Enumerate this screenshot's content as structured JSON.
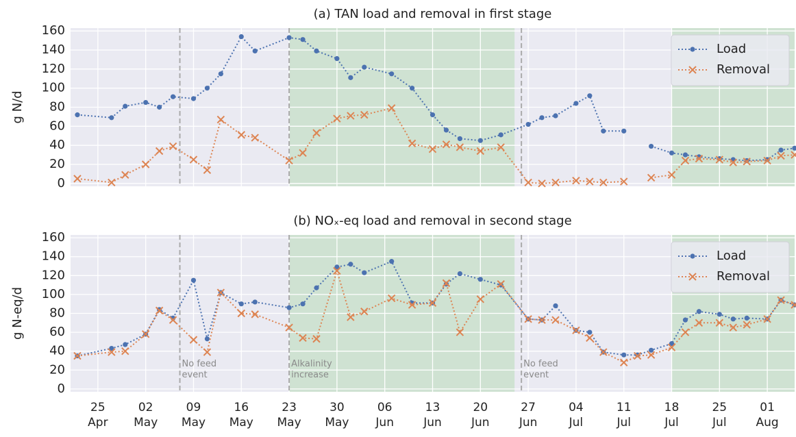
{
  "chart_data": [
    {
      "type": "line",
      "title": "(a) TAN load and removal in first stage",
      "y_label": "g N/d",
      "x": [
        "04-22",
        "04-27",
        "04-29",
        "05-02",
        "05-04",
        "05-06",
        "05-09",
        "05-11",
        "05-13",
        "05-16",
        "05-18",
        "05-23",
        "05-25",
        "05-27",
        "05-30",
        "06-01",
        "06-03",
        "06-07",
        "06-10",
        "06-13",
        "06-15",
        "06-17",
        "06-20",
        "06-23",
        "06-27",
        "06-29",
        "07-01",
        "07-04",
        "07-06",
        "07-08",
        "07-11",
        "07-13",
        "07-15",
        "07-18",
        "07-20",
        "07-22",
        "07-25",
        "07-27",
        "07-29",
        "08-01",
        "08-03",
        "08-05"
      ],
      "series": [
        {
          "name": "Load",
          "color": "#4c72b0",
          "marker": "o",
          "values": [
            72,
            69,
            81,
            85,
            80,
            91,
            89,
            100,
            115,
            154,
            139,
            153,
            151,
            139,
            131,
            111,
            122,
            115,
            100,
            72,
            56,
            47,
            45,
            51,
            62,
            69,
            71,
            84,
            92,
            55,
            55,
            null,
            39,
            32,
            30,
            28,
            26,
            25,
            24,
            25,
            35,
            37
          ]
        },
        {
          "name": "Removal",
          "color": "#dd8452",
          "marker": "x",
          "values": [
            5,
            1,
            9,
            20,
            34,
            39,
            25,
            14,
            67,
            51,
            48,
            24,
            32,
            53,
            68,
            71,
            72,
            79,
            42,
            36,
            41,
            38,
            34,
            38,
            1,
            0,
            1,
            3,
            2,
            1,
            2,
            null,
            6,
            9,
            24,
            26,
            25,
            22,
            23,
            24,
            29,
            30
          ]
        }
      ],
      "xlim": [
        "04-21",
        "08-05"
      ],
      "ylim": [
        -3,
        163
      ],
      "yticks": [
        0,
        20,
        40,
        60,
        80,
        100,
        120,
        140,
        160
      ],
      "grid": true,
      "legend": "upper right",
      "shaded_ranges": [
        [
          "05-23",
          "06-25"
        ],
        [
          "07-18",
          "08-05"
        ]
      ],
      "event_lines": [
        "05-07",
        "05-23",
        "06-26"
      ]
    },
    {
      "type": "line",
      "title": "(b) NOₓ-eq load and removal in second stage",
      "y_label": "g N-eq/d",
      "x": [
        "04-22",
        "04-27",
        "04-29",
        "05-02",
        "05-04",
        "05-06",
        "05-09",
        "05-11",
        "05-13",
        "05-16",
        "05-18",
        "05-23",
        "05-25",
        "05-27",
        "05-30",
        "06-01",
        "06-03",
        "06-07",
        "06-10",
        "06-13",
        "06-15",
        "06-17",
        "06-20",
        "06-23",
        "06-27",
        "06-29",
        "07-01",
        "07-04",
        "07-06",
        "07-08",
        "07-11",
        "07-13",
        "07-15",
        "07-18",
        "07-20",
        "07-22",
        "07-25",
        "07-27",
        "07-29",
        "08-01",
        "08-03",
        "08-05"
      ],
      "series": [
        {
          "name": "Load",
          "color": "#4c72b0",
          "marker": "o",
          "values": [
            35,
            43,
            47,
            58,
            84,
            75,
            115,
            53,
            102,
            90,
            92,
            86,
            90,
            107,
            129,
            132,
            123,
            135,
            91,
            91,
            111,
            122,
            116,
            110,
            74,
            73,
            88,
            62,
            60,
            39,
            36,
            36,
            41,
            48,
            73,
            82,
            79,
            74,
            75,
            74,
            94,
            89
          ]
        },
        {
          "name": "Removal",
          "color": "#dd8452",
          "marker": "x",
          "values": [
            35,
            39,
            40,
            58,
            83,
            73,
            52,
            39,
            102,
            80,
            79,
            65,
            54,
            53,
            125,
            76,
            82,
            96,
            89,
            91,
            112,
            60,
            95,
            111,
            74,
            73,
            73,
            62,
            54,
            39,
            28,
            35,
            36,
            44,
            60,
            70,
            70,
            65,
            68,
            74,
            94,
            89
          ]
        }
      ],
      "xlim": [
        "04-21",
        "08-05"
      ],
      "ylim": [
        -3,
        163
      ],
      "yticks": [
        0,
        20,
        40,
        60,
        80,
        100,
        120,
        140,
        160
      ],
      "xticks": [
        {
          "value": "04-25",
          "label": "25\nApr"
        },
        {
          "value": "05-02",
          "label": "02\nMay"
        },
        {
          "value": "05-09",
          "label": "09\nMay"
        },
        {
          "value": "05-16",
          "label": "16\nMay"
        },
        {
          "value": "05-23",
          "label": "23\nMay"
        },
        {
          "value": "05-30",
          "label": "30\nMay"
        },
        {
          "value": "06-06",
          "label": "06\nJun"
        },
        {
          "value": "06-13",
          "label": "13\nJun"
        },
        {
          "value": "06-20",
          "label": "20\nJun"
        },
        {
          "value": "06-27",
          "label": "27\nJun"
        },
        {
          "value": "07-04",
          "label": "04\nJul"
        },
        {
          "value": "07-11",
          "label": "11\nJul"
        },
        {
          "value": "07-18",
          "label": "18\nJul"
        },
        {
          "value": "07-25",
          "label": "25\nJul"
        },
        {
          "value": "08-01",
          "label": "01\nAug"
        }
      ],
      "grid": true,
      "legend": "upper right",
      "shaded_ranges": [
        [
          "05-23",
          "06-25"
        ],
        [
          "07-18",
          "08-05"
        ]
      ],
      "event_lines": [
        "05-07",
        "05-23",
        "06-26"
      ],
      "events": [
        {
          "x": "05-07",
          "label": "No feed\nevent"
        },
        {
          "x": "05-23",
          "label": "Alkalinity\nincrease"
        },
        {
          "x": "06-26",
          "label": "No feed\nevent"
        }
      ]
    }
  ]
}
